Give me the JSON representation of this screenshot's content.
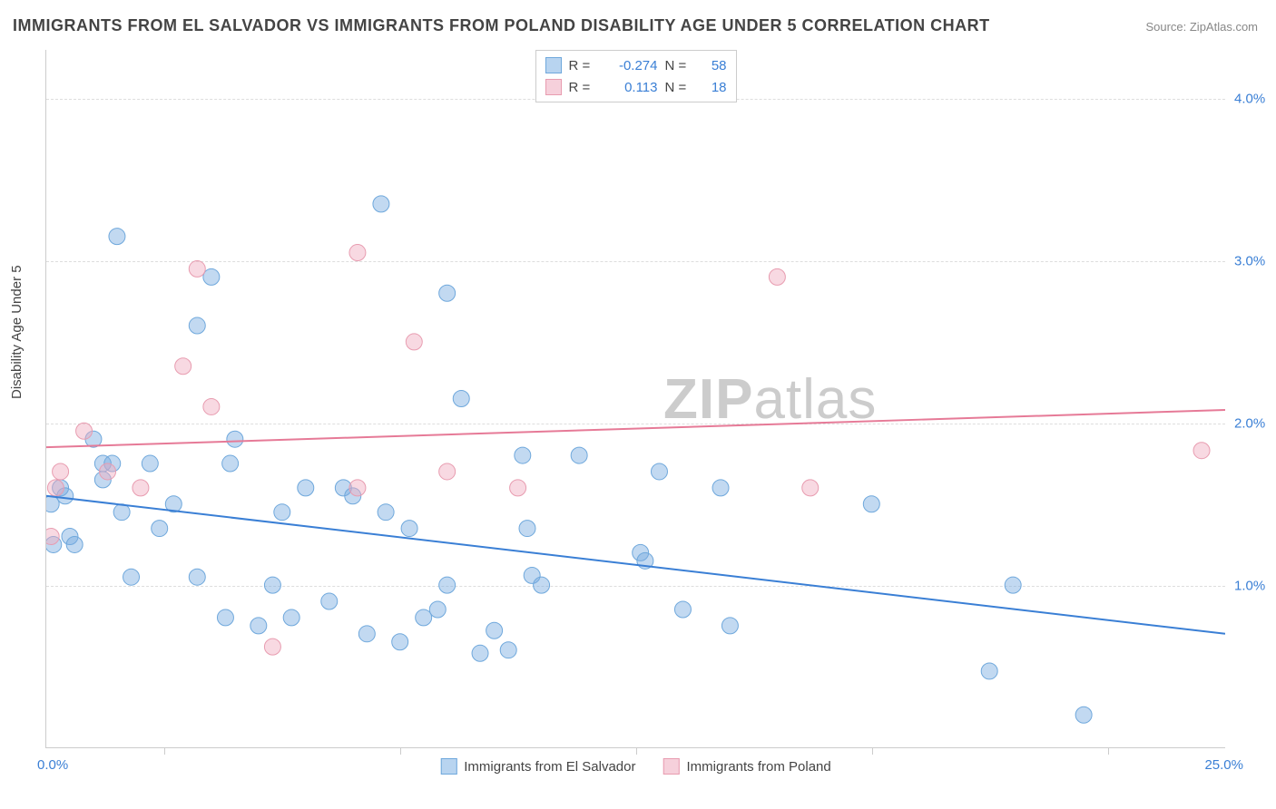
{
  "title": "IMMIGRANTS FROM EL SALVADOR VS IMMIGRANTS FROM POLAND DISABILITY AGE UNDER 5 CORRELATION CHART",
  "source_label": "Source: ZipAtlas.com",
  "ylabel": "Disability Age Under 5",
  "watermark_bold": "ZIP",
  "watermark_light": "atlas",
  "chart": {
    "type": "scatter",
    "xlim": [
      0,
      25
    ],
    "ylim": [
      0,
      4.3
    ],
    "x_start_label": "0.0%",
    "x_end_label": "25.0%",
    "xtick_positions": [
      2.5,
      7.5,
      12.5,
      17.5,
      22.5
    ],
    "yticks": [
      {
        "v": 1.0,
        "label": "1.0%"
      },
      {
        "v": 2.0,
        "label": "2.0%"
      },
      {
        "v": 3.0,
        "label": "3.0%"
      },
      {
        "v": 4.0,
        "label": "4.0%"
      }
    ],
    "grid_color": "#dddddd",
    "background_color": "#ffffff",
    "series": [
      {
        "name": "Immigrants from El Salvador",
        "color_fill": "rgba(120,170,225,0.45)",
        "color_stroke": "#6fa8dc",
        "swatch_fill": "#b8d4f0",
        "swatch_border": "#6fa8dc",
        "r_stat": "-0.274",
        "n_stat": "58",
        "marker_r": 9,
        "trend": {
          "x1": 0,
          "y1": 1.55,
          "x2": 25,
          "y2": 0.7,
          "color": "#3a7fd5",
          "width": 2
        },
        "points": [
          [
            0.1,
            1.5
          ],
          [
            0.15,
            1.25
          ],
          [
            0.3,
            1.6
          ],
          [
            0.4,
            1.55
          ],
          [
            0.5,
            1.3
          ],
          [
            0.6,
            1.25
          ],
          [
            1.0,
            1.9
          ],
          [
            1.2,
            1.75
          ],
          [
            1.2,
            1.65
          ],
          [
            1.4,
            1.75
          ],
          [
            1.5,
            3.15
          ],
          [
            1.6,
            1.45
          ],
          [
            1.8,
            1.05
          ],
          [
            2.2,
            1.75
          ],
          [
            2.4,
            1.35
          ],
          [
            2.7,
            1.5
          ],
          [
            3.2,
            1.05
          ],
          [
            3.2,
            2.6
          ],
          [
            3.5,
            2.9
          ],
          [
            3.8,
            0.8
          ],
          [
            3.9,
            1.75
          ],
          [
            4.0,
            1.9
          ],
          [
            4.5,
            0.75
          ],
          [
            4.8,
            1.0
          ],
          [
            5.0,
            1.45
          ],
          [
            5.2,
            0.8
          ],
          [
            5.5,
            1.6
          ],
          [
            6.0,
            0.9
          ],
          [
            6.3,
            1.6
          ],
          [
            6.5,
            1.55
          ],
          [
            6.8,
            0.7
          ],
          [
            7.1,
            3.35
          ],
          [
            7.2,
            1.45
          ],
          [
            7.5,
            0.65
          ],
          [
            7.7,
            1.35
          ],
          [
            8.0,
            0.8
          ],
          [
            8.3,
            0.85
          ],
          [
            8.5,
            1.0
          ],
          [
            8.5,
            2.8
          ],
          [
            8.8,
            2.15
          ],
          [
            9.2,
            0.58
          ],
          [
            9.5,
            0.72
          ],
          [
            9.8,
            0.6
          ],
          [
            10.1,
            1.8
          ],
          [
            10.2,
            1.35
          ],
          [
            10.3,
            1.06
          ],
          [
            10.5,
            1.0
          ],
          [
            11.3,
            1.8
          ],
          [
            12.6,
            1.2
          ],
          [
            12.7,
            1.15
          ],
          [
            13.0,
            1.7
          ],
          [
            13.5,
            0.85
          ],
          [
            14.3,
            1.6
          ],
          [
            14.5,
            0.75
          ],
          [
            17.5,
            1.5
          ],
          [
            20.0,
            0.47
          ],
          [
            20.5,
            1.0
          ],
          [
            22.0,
            0.2
          ]
        ]
      },
      {
        "name": "Immigrants from Poland",
        "color_fill": "rgba(240,170,190,0.45)",
        "color_stroke": "#e89cb0",
        "swatch_fill": "#f6d0db",
        "swatch_border": "#e89cb0",
        "r_stat": "0.113",
        "n_stat": "18",
        "marker_r": 9,
        "trend": {
          "x1": 0,
          "y1": 1.85,
          "x2": 25,
          "y2": 2.08,
          "color": "#e67a97",
          "width": 2
        },
        "points": [
          [
            0.1,
            1.3
          ],
          [
            0.2,
            1.6
          ],
          [
            0.3,
            1.7
          ],
          [
            0.8,
            1.95
          ],
          [
            1.3,
            1.7
          ],
          [
            2.0,
            1.6
          ],
          [
            2.9,
            2.35
          ],
          [
            3.2,
            2.95
          ],
          [
            3.5,
            2.1
          ],
          [
            4.8,
            0.62
          ],
          [
            6.6,
            3.05
          ],
          [
            6.6,
            1.6
          ],
          [
            7.8,
            2.5
          ],
          [
            8.5,
            1.7
          ],
          [
            10.0,
            1.6
          ],
          [
            15.5,
            2.9
          ],
          [
            16.2,
            1.6
          ],
          [
            24.5,
            1.83
          ]
        ]
      }
    ]
  },
  "legend_bottom": [
    {
      "swatch_fill": "#b8d4f0",
      "swatch_border": "#6fa8dc",
      "label": "Immigrants from El Salvador"
    },
    {
      "swatch_fill": "#f6d0db",
      "swatch_border": "#e89cb0",
      "label": "Immigrants from Poland"
    }
  ]
}
